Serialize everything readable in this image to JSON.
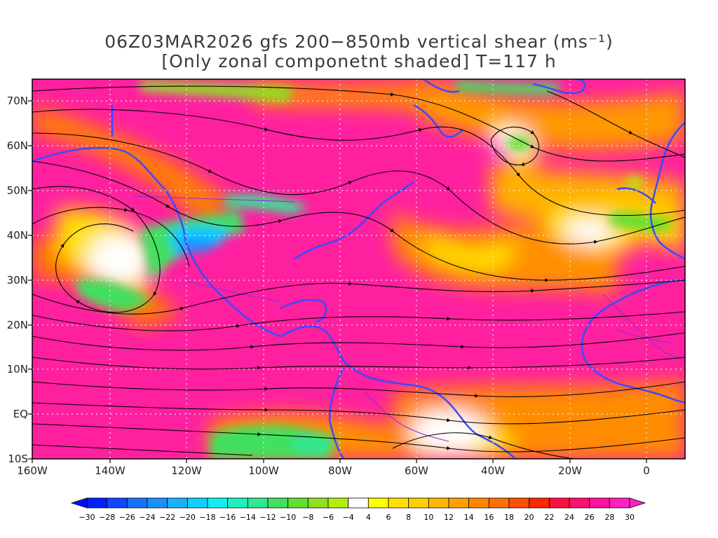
{
  "title": {
    "line1": "06Z03MAR2026 gfs 200−850mb vertical shear (ms⁻¹)",
    "line2": "[Only zonal componetnt shaded] T=117 h"
  },
  "map": {
    "lat_labels": [
      "70N",
      "60N",
      "50N",
      "40N",
      "30N",
      "20N",
      "10N",
      "EQ",
      "10S"
    ],
    "lon_labels": [
      "160W",
      "140W",
      "120W",
      "100W",
      "80W",
      "60W",
      "40W",
      "20W",
      "0"
    ],
    "lat_range": [
      -10,
      75
    ],
    "lon_range": [
      -160,
      10
    ],
    "coastline_color": "#3a4bff",
    "border_color": "#8a2be2"
  },
  "colorbar": {
    "labels": [
      "−30",
      "−28",
      "−26",
      "−24",
      "−22",
      "−20",
      "−18",
      "−16",
      "−14",
      "−12",
      "−10",
      "−8",
      "−6",
      "−4",
      "4",
      "6",
      "8",
      "10",
      "12",
      "14",
      "16",
      "18",
      "20",
      "22",
      "24",
      "26",
      "28",
      "30"
    ],
    "colors": [
      "#0020ff",
      "#1048ff",
      "#1870ff",
      "#1a90ff",
      "#18b0ff",
      "#10d0ff",
      "#10f0f0",
      "#20f0c0",
      "#30e890",
      "#40e060",
      "#60e030",
      "#90e020",
      "#b0f010",
      "#ffffff",
      "#ffff00",
      "#ffe000",
      "#ffd000",
      "#ffb800",
      "#ffa000",
      "#ff8800",
      "#ff7000",
      "#ff5000",
      "#ff2800",
      "#ff1040",
      "#ff1070",
      "#ff10a0",
      "#ff20c0"
    ],
    "min_color": "#0010ff",
    "max_color": "#ff20c0"
  }
}
